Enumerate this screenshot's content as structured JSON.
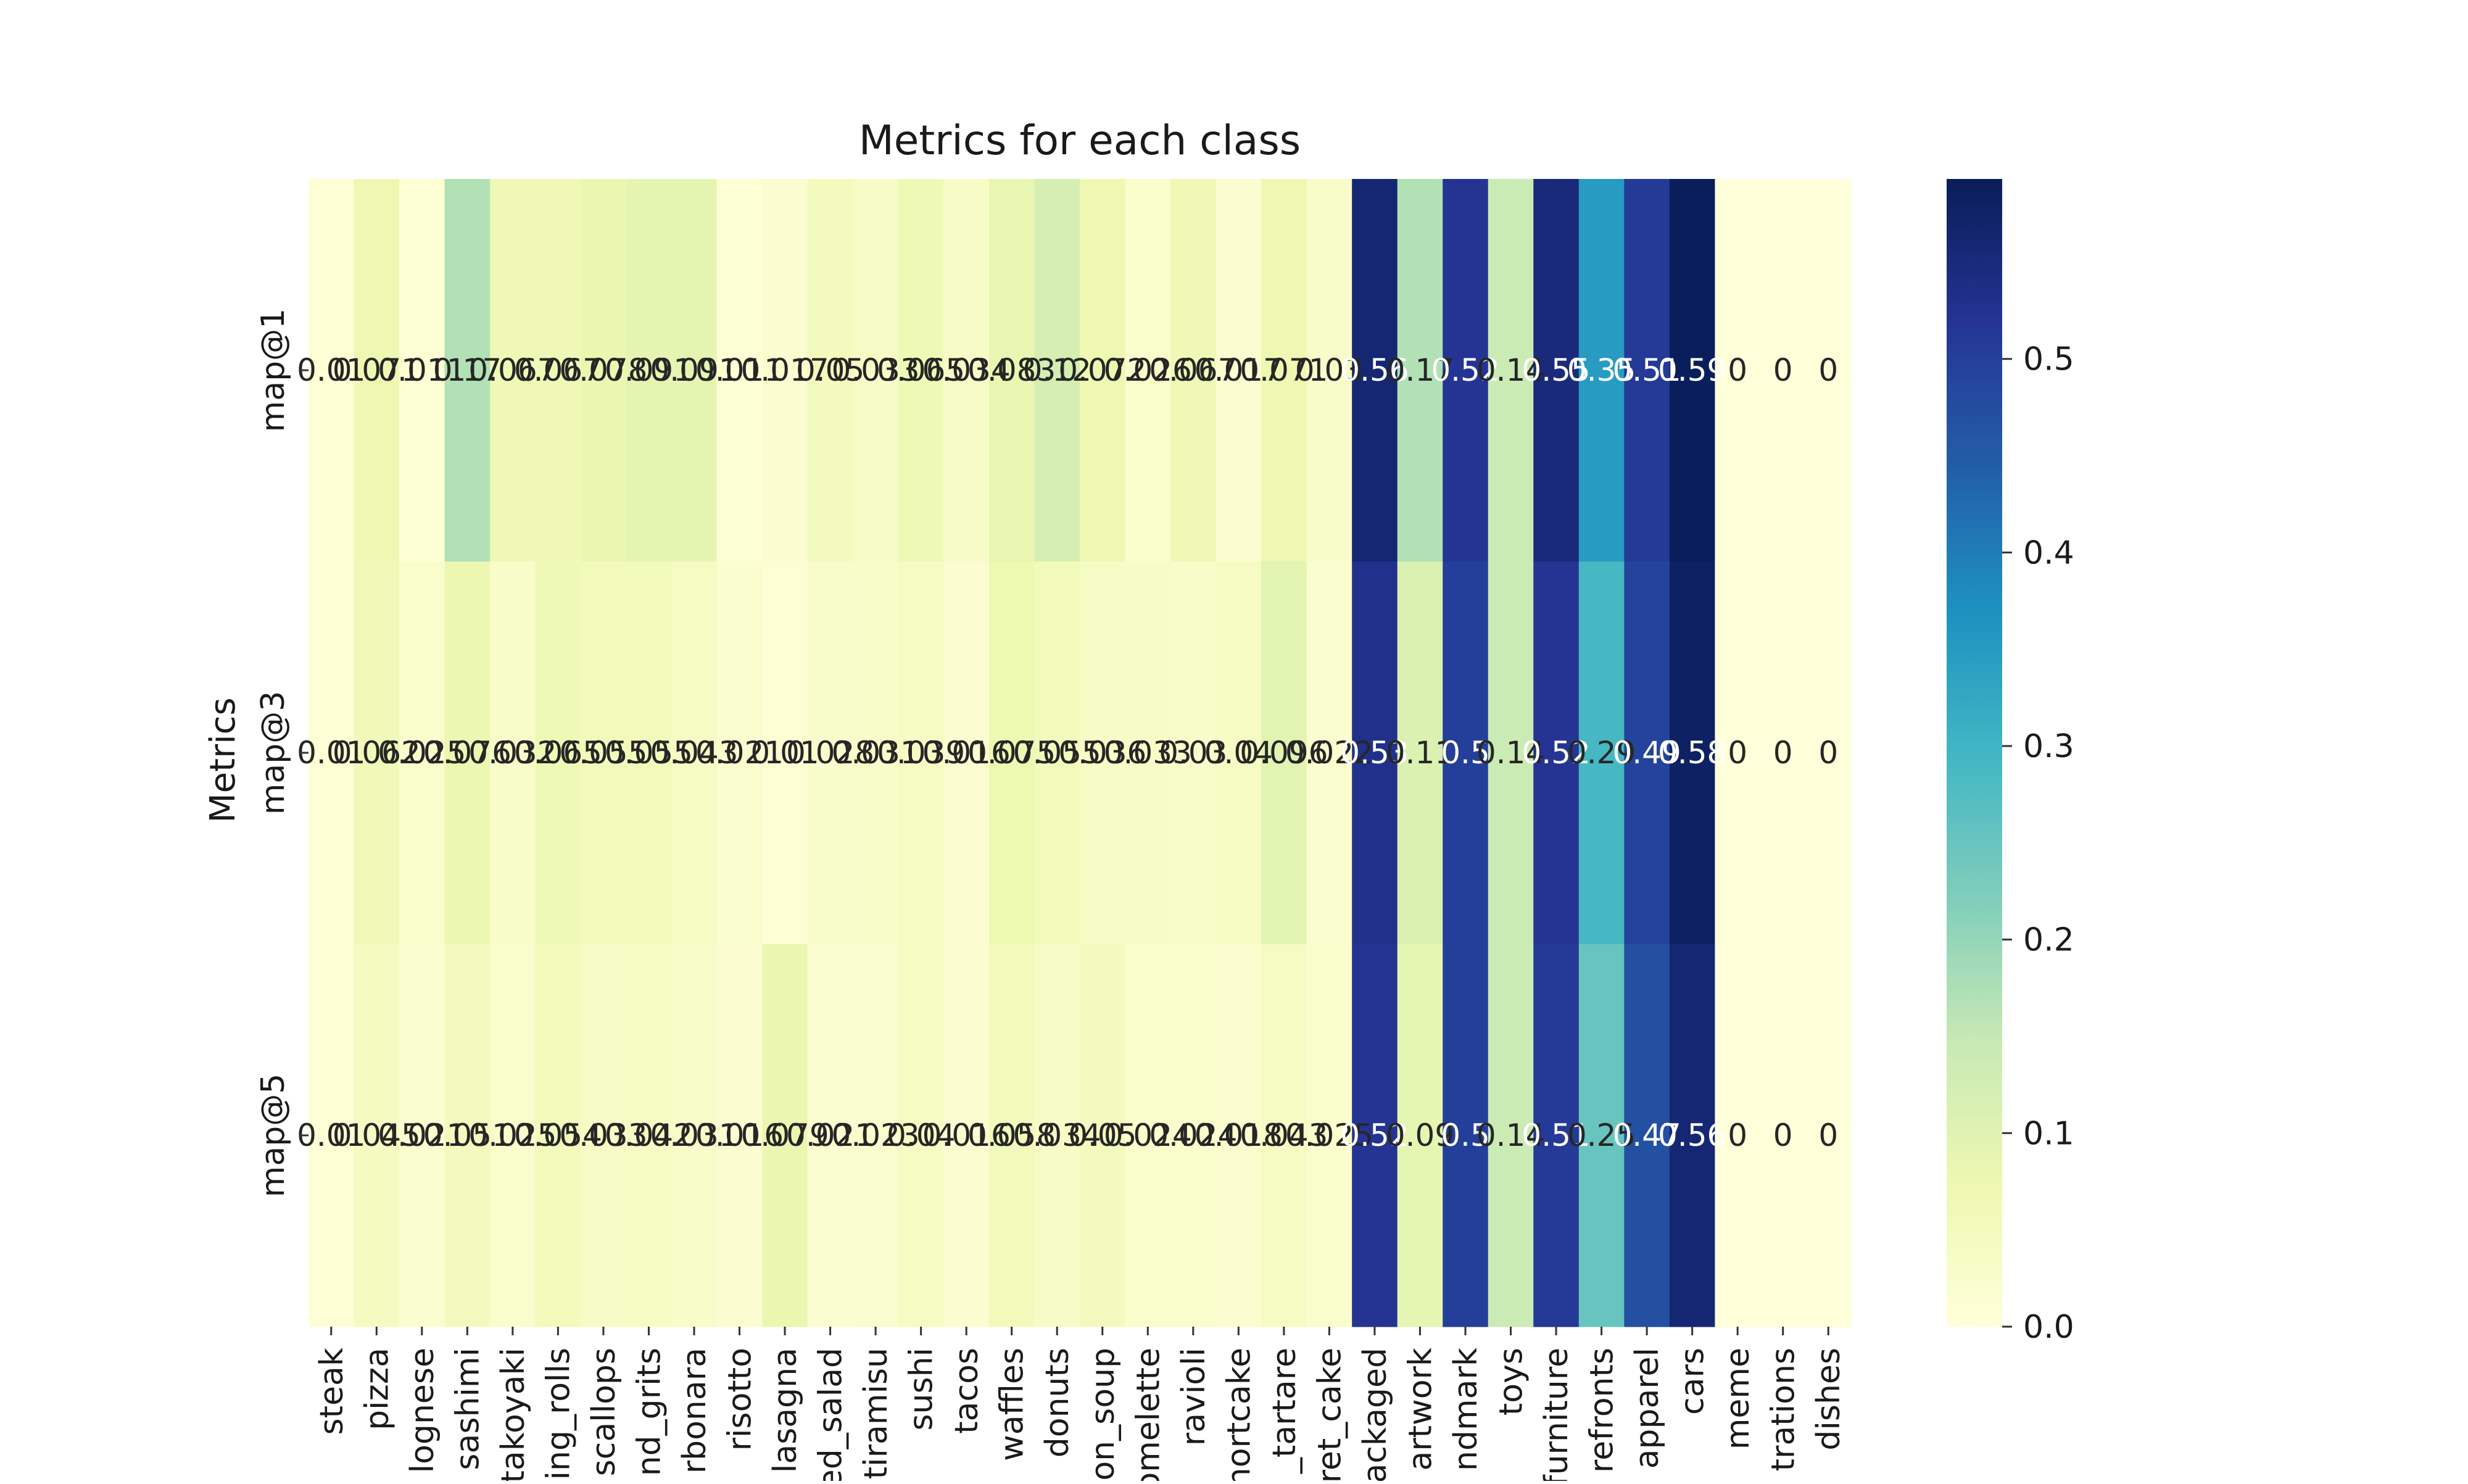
{
  "chart_data": {
    "type": "heatmap",
    "title": "Metrics for each class",
    "xlabel": "",
    "ylabel": "Metrics",
    "rows": [
      "map@1",
      "map@3",
      "map@5"
    ],
    "columns": [
      "steak",
      "pizza",
      "lognese",
      "sashimi",
      "takoyaki",
      "ing_rolls",
      "scallops",
      "nd_grits",
      "rbonara",
      "risotto",
      "lasagna",
      "ed_salad",
      "tiramisu",
      "sushi",
      "tacos",
      "waffles",
      "donuts",
      "on_soup",
      "omelette",
      "ravioli",
      "hortcake",
      "_tartare",
      "ret_cake",
      "packaged",
      "artwork",
      "ndmark",
      "toys",
      "furniture",
      "refronts",
      "apparel",
      "cars",
      "meme",
      "trations",
      "dishes"
    ],
    "values": [
      [
        0.01,
        0.071,
        0.011,
        0.17,
        0.067,
        0.067,
        0.078,
        0.091,
        0.091,
        0.011,
        0.017,
        0.05,
        0.033,
        0.065,
        0.034,
        0.083,
        0.12,
        0.072,
        0.026,
        0.067,
        0.017,
        0.071,
        0.03,
        0.56,
        0.17,
        0.52,
        0.14,
        0.55,
        0.35,
        0.51,
        0.59,
        0,
        0,
        0
      ],
      [
        0.01,
        0.062,
        0.025,
        0.076,
        0.032,
        0.065,
        0.055,
        0.055,
        0.043,
        0.021,
        0.01,
        0.028,
        0.031,
        0.039,
        0.016,
        0.075,
        0.055,
        0.036,
        0.033,
        0.03,
        0.04,
        0.096,
        0.022,
        0.53,
        0.11,
        0.5,
        0.14,
        0.52,
        0.29,
        0.49,
        0.58,
        0,
        0,
        0
      ],
      [
        0.01,
        0.045,
        0.021,
        0.051,
        0.025,
        0.054,
        0.033,
        0.042,
        0.031,
        0.016,
        0.079,
        0.021,
        0.023,
        0.04,
        0.016,
        0.058,
        0.034,
        0.05,
        0.024,
        0.024,
        0.018,
        0.043,
        0.025,
        0.52,
        0.09,
        0.5,
        0.14,
        0.51,
        0.25,
        0.47,
        0.56,
        0,
        0,
        0
      ]
    ],
    "cell_labels": [
      [
        "0.01",
        "0.071",
        "0.011",
        "0.17",
        "0.067",
        "0.067",
        "0.078",
        "0.091",
        "0.091",
        "0.011",
        "0.017",
        "0.05",
        "0.033",
        "0.065",
        "0.034",
        "0.083",
        "0.12",
        "0.072",
        "0.026",
        "0.067",
        "0.017",
        "0.071",
        "0.03",
        "0.56",
        "0.17",
        "0.52",
        "0.14",
        "0.55",
        "0.35",
        "0.51",
        "0.59",
        "0",
        "0",
        "0"
      ],
      [
        "0.01",
        "0.062",
        "0.025",
        "0.076",
        "0.032",
        "0.065",
        "0.055",
        "0.055",
        "0.043",
        "0.021",
        "0.01",
        "0.028",
        "0.031",
        "0.039",
        "0.016",
        "0.075",
        "0.055",
        "0.036",
        "0.033",
        "0.03",
        "0.04",
        "0.096",
        "0.022",
        "0.53",
        "0.11",
        "0.5",
        "0.14",
        "0.52",
        "0.29",
        "0.49",
        "0.58",
        "0",
        "0",
        "0"
      ],
      [
        "0.01",
        "0.045",
        "0.021",
        "0.051",
        "0.025",
        "0.054",
        "0.033",
        "0.042",
        "0.031",
        "0.016",
        "0.079",
        "0.021",
        "0.023",
        "0.04",
        "0.016",
        "0.058",
        "0.034",
        "0.05",
        "0.024",
        "0.024",
        "0.018",
        "0.043",
        "0.025",
        "0.52",
        "0.09",
        "0.5",
        "0.14",
        "0.51",
        "0.25",
        "0.47",
        "0.56",
        "0",
        "0",
        "0"
      ]
    ],
    "colorbar": {
      "colormap": "YlGnBu",
      "vmin": 0,
      "vmax": 0.593,
      "ticks": [
        0.0,
        0.1,
        0.2,
        0.3,
        0.4,
        0.5
      ],
      "tick_labels": [
        "0.0",
        "0.1",
        "0.2",
        "0.3",
        "0.4",
        "0.5"
      ]
    },
    "grid": false,
    "legend": "colorbar-right"
  }
}
